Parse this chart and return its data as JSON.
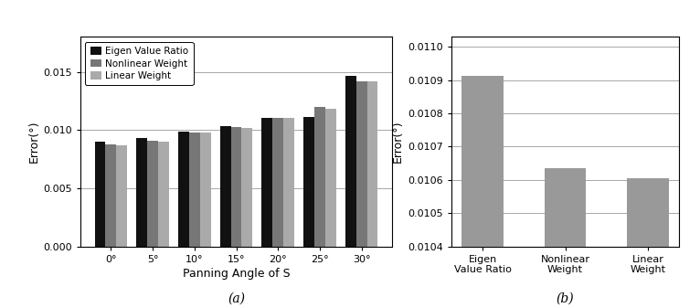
{
  "chart_a": {
    "angles": [
      "0°",
      "5°",
      "10°",
      "15°",
      "20°",
      "25°",
      "30°"
    ],
    "eigen_value_ratio": [
      0.009,
      0.0093,
      0.0099,
      0.01035,
      0.01105,
      0.01115,
      0.01465
    ],
    "nonlinear_weight": [
      0.0088,
      0.0091,
      0.0098,
      0.01025,
      0.01105,
      0.01195,
      0.01415
    ],
    "linear_weight": [
      0.0087,
      0.009,
      0.0098,
      0.0102,
      0.01105,
      0.01185,
      0.0142
    ],
    "ylabel": "Error(°)",
    "xlabel": "Panning Angle of S",
    "ylim": [
      0.0,
      0.018
    ],
    "yticks": [
      0.0,
      0.005,
      0.01,
      0.015
    ],
    "legend_labels": [
      "Eigen Value Ratio",
      "Nonlinear Weight",
      "Linear Weight"
    ],
    "colors": [
      "#111111",
      "#777777",
      "#aaaaaa"
    ],
    "caption": "(a)"
  },
  "chart_b": {
    "categories": [
      "Eigen\nValue Ratio",
      "Nonlinear\nWeight",
      "Linear\nWeight"
    ],
    "values": [
      0.010912,
      0.010635,
      0.010606
    ],
    "color": "#999999",
    "ylabel": "Error(°)",
    "ylim": [
      0.0104,
      0.01103
    ],
    "yticks": [
      0.0104,
      0.0105,
      0.0106,
      0.0107,
      0.0108,
      0.0109,
      0.011
    ],
    "caption": "(b)"
  },
  "background_color": "#ffffff"
}
